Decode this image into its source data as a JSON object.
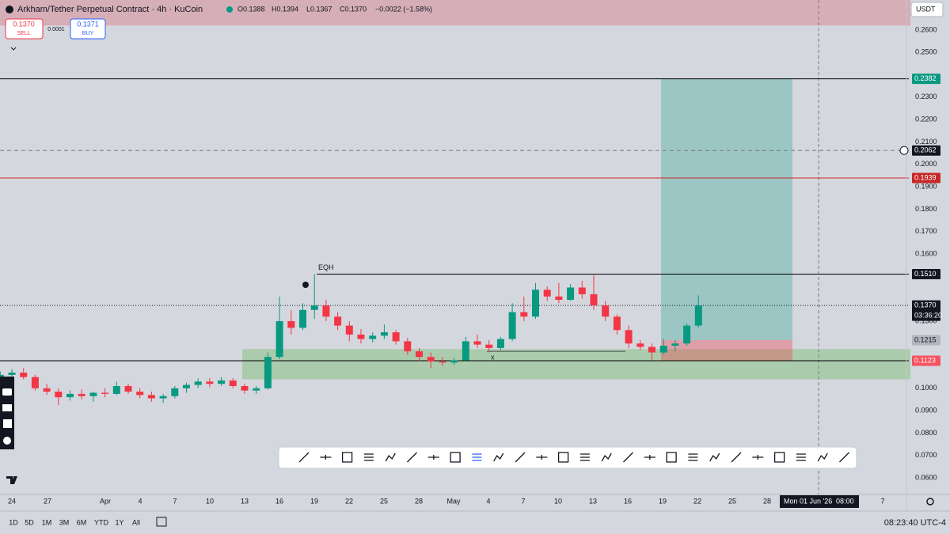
{
  "header": {
    "symbol": "Arkham/Tether Perpetual Contract · 4h · KuCoin",
    "open": "O0.1388",
    "high": "H0.1394",
    "low": "L0.1367",
    "close": "C0.1370",
    "change": "−0.0022 (−1.58%)"
  },
  "trade": {
    "sell_price": "0.1370",
    "sell": "SELL",
    "spread": "0.0001",
    "buy_price": "0.1371",
    "buy": "BUY"
  },
  "ranges": [
    "1D",
    "5D",
    "1M",
    "3M",
    "6M",
    "YTD",
    "1Y",
    "All"
  ],
  "clock": "08:23:40 UTC-4",
  "chart_data": {
    "type": "candlestick",
    "currency": "USDT",
    "x_labels": [
      "24",
      "27",
      "Apr",
      "4",
      "7",
      "10",
      "13",
      "16",
      "19",
      "22",
      "25",
      "28",
      "May",
      "4",
      "7",
      "10",
      "13",
      "16",
      "19",
      "22",
      "25",
      "28",
      "7"
    ],
    "crosshair_date": "Mon 01 Jun '26",
    "crosshair_time": "08:00",
    "up_color": "#089981",
    "down_color": "#f23645",
    "grid": false,
    "ylim": [
      0.0526,
      0.2734
    ],
    "yticks": [
      {
        "value": 0.06,
        "label": "0.0600"
      },
      {
        "value": 0.07,
        "label": "0.0700"
      },
      {
        "value": 0.08,
        "label": "0.0800"
      },
      {
        "value": 0.09,
        "label": "0.0900"
      },
      {
        "value": 0.1,
        "label": "0.1000"
      },
      {
        "value": 0.13,
        "label": "0.1300"
      },
      {
        "value": 0.16,
        "label": "0.1600"
      },
      {
        "value": 0.17,
        "label": "0.1700"
      },
      {
        "value": 0.18,
        "label": "0.1800"
      },
      {
        "value": 0.19,
        "label": "0.1900"
      },
      {
        "value": 0.2,
        "label": "0.2000"
      },
      {
        "value": 0.21,
        "label": "0.2100"
      },
      {
        "value": 0.22,
        "label": "0.2200"
      },
      {
        "value": 0.23,
        "label": "0.2300"
      },
      {
        "value": 0.25,
        "label": "0.2500"
      },
      {
        "value": 0.26,
        "label": "0.2600"
      }
    ],
    "open": [
      0.104,
      0.106,
      0.107,
      0.105,
      0.1,
      0.0985,
      0.096,
      0.0975,
      0.0965,
      0.098,
      0.0975,
      0.101,
      0.0985,
      0.097,
      0.0955,
      0.0965,
      0.1,
      0.1015,
      0.103,
      0.102,
      0.1035,
      0.101,
      0.099,
      0.1,
      0.114,
      0.13,
      0.127,
      0.135,
      0.137,
      0.132,
      0.128,
      0.124,
      0.122,
      0.1235,
      0.125,
      0.121,
      0.1165,
      0.114,
      0.112,
      0.1115,
      0.1125,
      0.121,
      0.1195,
      0.118,
      0.122,
      0.134,
      0.132,
      0.144,
      0.141,
      0.1395,
      0.145,
      0.142,
      0.137,
      0.132,
      0.126,
      0.12,
      0.1185,
      0.116,
      0.119,
      0.12,
      0.128
    ],
    "high": [
      0.1075,
      0.1085,
      0.109,
      0.106,
      0.102,
      0.1,
      0.099,
      0.0995,
      0.0985,
      0.1,
      0.103,
      0.102,
      0.1,
      0.0985,
      0.0975,
      0.101,
      0.1025,
      0.1045,
      0.1045,
      0.105,
      0.1045,
      0.102,
      0.101,
      0.116,
      0.141,
      0.135,
      0.138,
      0.151,
      0.1395,
      0.134,
      0.13,
      0.1265,
      0.125,
      0.1285,
      0.126,
      0.1225,
      0.118,
      0.116,
      0.114,
      0.1135,
      0.123,
      0.124,
      0.1215,
      0.123,
      0.138,
      0.141,
      0.147,
      0.1455,
      0.147,
      0.1465,
      0.148,
      0.1505,
      0.139,
      0.133,
      0.128,
      0.1215,
      0.12,
      0.122,
      0.1215,
      0.129,
      0.1415
    ],
    "low": [
      0.1025,
      0.1045,
      0.104,
      0.099,
      0.097,
      0.0925,
      0.0945,
      0.095,
      0.094,
      0.096,
      0.097,
      0.0975,
      0.0955,
      0.094,
      0.0935,
      0.0955,
      0.098,
      0.1,
      0.1005,
      0.101,
      0.1,
      0.0975,
      0.0975,
      0.0995,
      0.113,
      0.124,
      0.126,
      0.131,
      0.13,
      0.126,
      0.121,
      0.12,
      0.1205,
      0.122,
      0.1195,
      0.115,
      0.112,
      0.109,
      0.11,
      0.1105,
      0.112,
      0.118,
      0.116,
      0.117,
      0.121,
      0.13,
      0.131,
      0.139,
      0.138,
      0.139,
      0.14,
      0.135,
      0.13,
      0.124,
      0.118,
      0.117,
      0.1125,
      0.115,
      0.1165,
      0.119,
      0.127
    ],
    "close": [
      0.106,
      0.107,
      0.105,
      0.1,
      0.0985,
      0.096,
      0.0975,
      0.0965,
      0.098,
      0.0975,
      0.101,
      0.0985,
      0.097,
      0.0955,
      0.0965,
      0.1,
      0.1015,
      0.103,
      0.102,
      0.1035,
      0.101,
      0.099,
      0.1,
      0.114,
      0.13,
      0.127,
      0.135,
      0.137,
      0.132,
      0.128,
      0.124,
      0.122,
      0.1235,
      0.125,
      0.121,
      0.1165,
      0.114,
      0.112,
      0.1115,
      0.1125,
      0.121,
      0.1195,
      0.118,
      0.122,
      0.134,
      0.132,
      0.144,
      0.141,
      0.1395,
      0.145,
      0.142,
      0.137,
      0.132,
      0.126,
      0.12,
      0.1185,
      0.116,
      0.119,
      0.12,
      0.128,
      0.137
    ],
    "levels": [
      {
        "value": 0.2382,
        "color": "#000000",
        "style": "solid",
        "badge": "#089981"
      },
      {
        "value": 0.2062,
        "color": "#787b86",
        "style": "dashed",
        "badge": "#131722"
      },
      {
        "value": 0.1939,
        "color": "#c62828",
        "style": "solid",
        "badge": "#c62828"
      },
      {
        "value": 0.151,
        "label": "0.1510",
        "color": "#000000",
        "style": "solid",
        "badge": "#131722"
      },
      {
        "value": 0.137,
        "label": "0.1370",
        "color": "#131722",
        "style": "dotted",
        "badge": "#131722"
      },
      {
        "value": 0.1215,
        "color": "#b2b5be",
        "style": "none",
        "badge": "#b2b5be"
      },
      {
        "value": 0.1123,
        "color": "#000000",
        "style": "solid",
        "badge": "#f7525f"
      }
    ],
    "countdown": "03:36:20",
    "zones": [
      {
        "low": 0.104,
        "high": 0.1175,
        "color": "rgba(120,190,110,0.45)"
      },
      {
        "low": 0.262,
        "high": 0.2734,
        "color": "rgba(214,160,170,0.75)"
      }
    ],
    "annotations": [
      {
        "text": "EQH",
        "value": 0.151
      },
      {
        "text": "x",
        "value": 0.1165
      }
    ]
  }
}
